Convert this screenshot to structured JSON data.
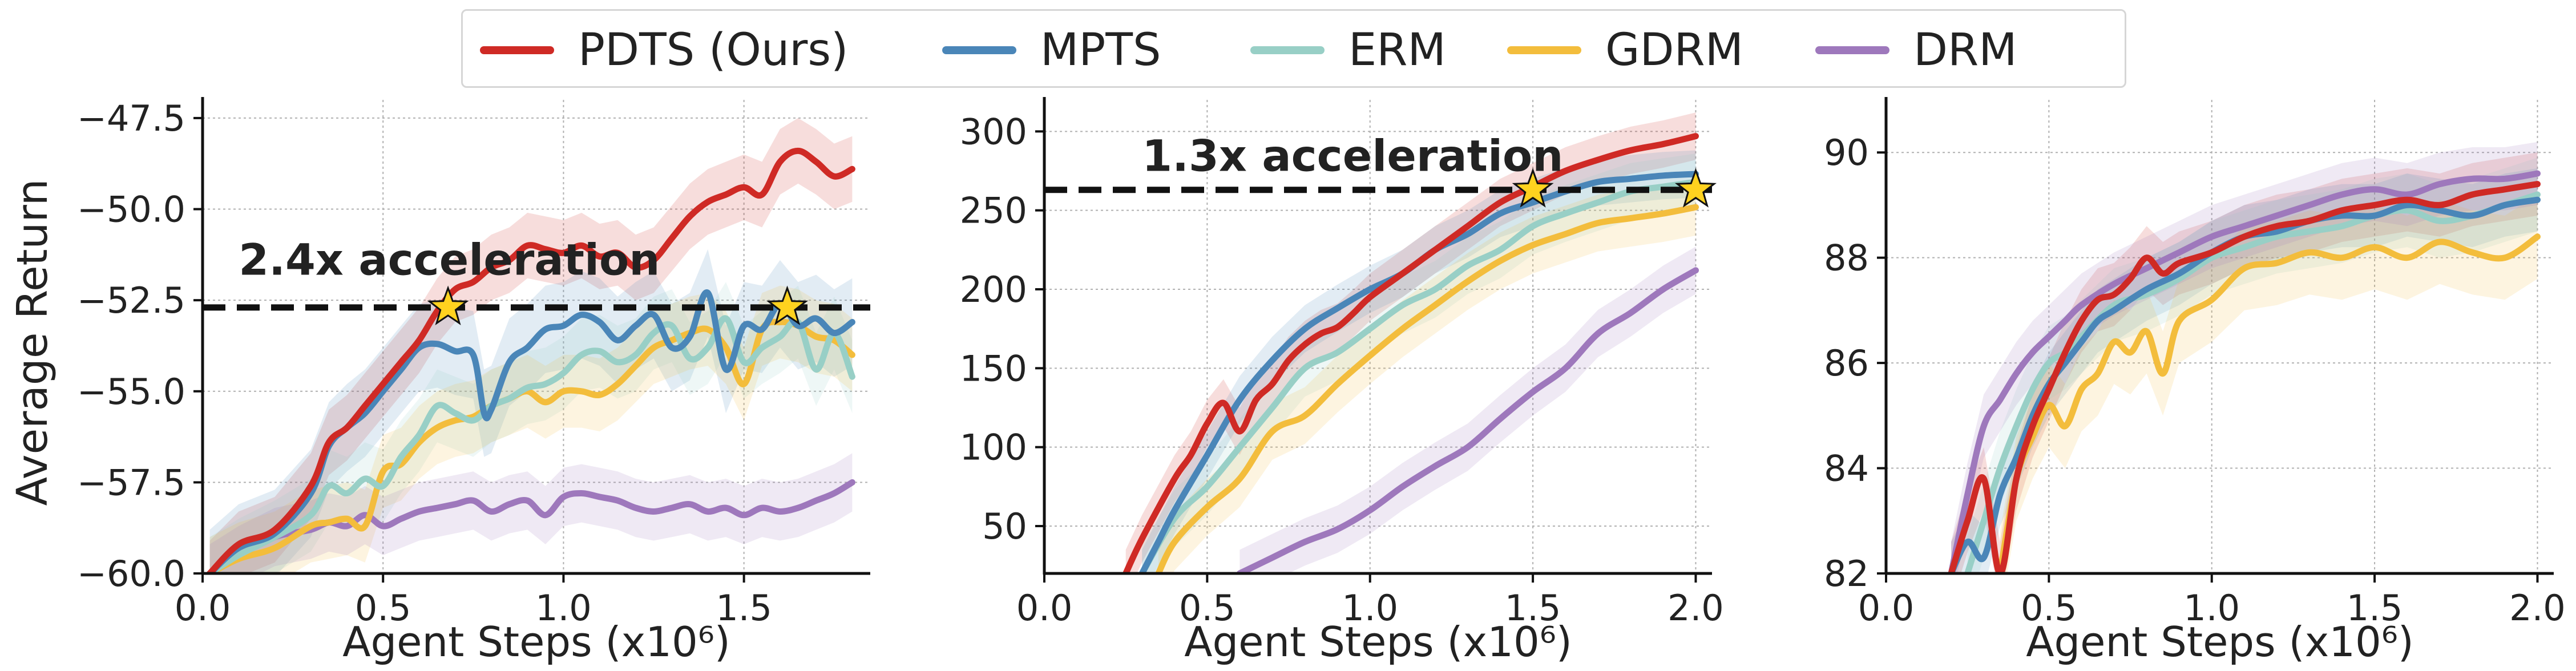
{
  "legend": [
    {
      "name": "PDTS (Ours)",
      "color": "#cf2a25"
    },
    {
      "name": "MPTS",
      "color": "#4a86b8"
    },
    {
      "name": "ERM",
      "color": "#98cfc6"
    },
    {
      "name": "GDRM",
      "color": "#f3bd3c"
    },
    {
      "name": "DRM",
      "color": "#9e78bc"
    }
  ],
  "chart_data": [
    {
      "type": "line",
      "xlabel": "Agent Steps (x10^6)",
      "ylabel": "Average Return",
      "xlim": [
        0,
        1.85
      ],
      "ylim": [
        -60,
        -47
      ],
      "xticks": [
        0.0,
        0.5,
        1.0,
        1.5
      ],
      "xtick_labels": [
        "0.0",
        "0.5",
        "1.0",
        "1.5"
      ],
      "yticks": [
        -60,
        -57.5,
        -55,
        -52.5,
        -50,
        -47.5
      ],
      "ytick_labels": [
        "−60.0",
        "−57.5",
        "−55.0",
        "−52.5",
        "−50.0",
        "−47.5"
      ],
      "grid": true,
      "annotation": {
        "text": "2.4x acceleration",
        "x": 0.1,
        "y": -51.8
      },
      "hline": -52.7,
      "stars": [
        [
          0.68,
          -52.7
        ],
        [
          1.62,
          -52.7
        ]
      ],
      "series": [
        {
          "name": "PDTS (Ours)",
          "color": "#cf2a25",
          "x": [
            0.02,
            0.1,
            0.2,
            0.3,
            0.35,
            0.4,
            0.45,
            0.5,
            0.55,
            0.6,
            0.65,
            0.7,
            0.75,
            0.8,
            0.85,
            0.9,
            0.95,
            1.0,
            1.05,
            1.1,
            1.15,
            1.2,
            1.25,
            1.3,
            1.35,
            1.4,
            1.45,
            1.5,
            1.55,
            1.6,
            1.65,
            1.7,
            1.75,
            1.8
          ],
          "y": [
            -60,
            -59.2,
            -58.8,
            -57.6,
            -56.4,
            -56,
            -55.4,
            -54.8,
            -54.2,
            -53.6,
            -52.8,
            -52.2,
            -52,
            -51.6,
            -51.4,
            -51,
            -51.1,
            -51.2,
            -51,
            -51.3,
            -51.2,
            -51.6,
            -51.4,
            -50.8,
            -50.2,
            -49.8,
            -49.6,
            -49.4,
            -49.6,
            -48.7,
            -48.4,
            -48.7,
            -49.1,
            -48.9
          ],
          "band": 0.9
        },
        {
          "name": "MPTS",
          "color": "#4a86b8",
          "x": [
            0.02,
            0.1,
            0.2,
            0.3,
            0.35,
            0.4,
            0.45,
            0.5,
            0.55,
            0.6,
            0.65,
            0.7,
            0.75,
            0.78,
            0.8,
            0.85,
            0.9,
            0.95,
            1.0,
            1.05,
            1.1,
            1.15,
            1.2,
            1.25,
            1.3,
            1.35,
            1.4,
            1.45,
            1.5,
            1.55,
            1.6,
            1.65,
            1.7,
            1.75,
            1.8
          ],
          "y": [
            -60,
            -59.3,
            -58.9,
            -57.8,
            -56.5,
            -56,
            -55.6,
            -55,
            -54.4,
            -53.8,
            -53.7,
            -53.9,
            -54,
            -55.6,
            -55.5,
            -54.2,
            -53.8,
            -53.3,
            -53.2,
            -52.9,
            -53.1,
            -53.6,
            -53.2,
            -52.9,
            -53.8,
            -53.5,
            -52.3,
            -54.4,
            -53.2,
            -53.3,
            -52.6,
            -53.2,
            -53,
            -53.4,
            -53.1
          ],
          "band": 1.2
        },
        {
          "name": "ERM",
          "color": "#98cfc6",
          "x": [
            0.02,
            0.1,
            0.2,
            0.3,
            0.35,
            0.4,
            0.45,
            0.5,
            0.55,
            0.6,
            0.65,
            0.7,
            0.75,
            0.8,
            0.85,
            0.9,
            0.95,
            1.0,
            1.05,
            1.1,
            1.15,
            1.2,
            1.25,
            1.3,
            1.35,
            1.4,
            1.45,
            1.5,
            1.55,
            1.6,
            1.65,
            1.7,
            1.75,
            1.8
          ],
          "y": [
            -60,
            -59.5,
            -59,
            -58.4,
            -57.6,
            -57.8,
            -57.4,
            -57.6,
            -56.8,
            -56.2,
            -55.4,
            -55.6,
            -55.8,
            -55.4,
            -55.2,
            -54.9,
            -54.8,
            -54.5,
            -54,
            -53.9,
            -54.2,
            -54,
            -53.4,
            -53.2,
            -54.1,
            -53.8,
            -53,
            -54.2,
            -53.8,
            -53.5,
            -53.1,
            -54.4,
            -53.4,
            -54.6
          ],
          "band": 1.0
        },
        {
          "name": "GDRM",
          "color": "#f3bd3c",
          "x": [
            0.02,
            0.1,
            0.2,
            0.3,
            0.35,
            0.4,
            0.45,
            0.5,
            0.55,
            0.6,
            0.65,
            0.7,
            0.75,
            0.8,
            0.85,
            0.9,
            0.95,
            1.0,
            1.05,
            1.1,
            1.15,
            1.2,
            1.25,
            1.3,
            1.35,
            1.4,
            1.45,
            1.5,
            1.55,
            1.6,
            1.65,
            1.7,
            1.75,
            1.8
          ],
          "y": [
            -60,
            -59.6,
            -59.3,
            -58.7,
            -58.6,
            -58.5,
            -58.7,
            -57.2,
            -57,
            -56.4,
            -56,
            -55.8,
            -55.7,
            -55.4,
            -55.2,
            -55,
            -55.3,
            -55,
            -55,
            -55.1,
            -54.8,
            -54.3,
            -53.8,
            -53.6,
            -53.4,
            -53.3,
            -53.8,
            -54.8,
            -53.3,
            -53.1,
            -53.2,
            -53.5,
            -53.6,
            -54
          ],
          "band": 1.0
        },
        {
          "name": "DRM",
          "color": "#9e78bc",
          "x": [
            0.02,
            0.1,
            0.2,
            0.3,
            0.35,
            0.4,
            0.45,
            0.5,
            0.55,
            0.6,
            0.65,
            0.7,
            0.75,
            0.8,
            0.85,
            0.9,
            0.95,
            1.0,
            1.05,
            1.1,
            1.15,
            1.2,
            1.25,
            1.3,
            1.35,
            1.4,
            1.45,
            1.5,
            1.55,
            1.6,
            1.65,
            1.7,
            1.75,
            1.8
          ],
          "y": [
            -60,
            -59.5,
            -59,
            -58.8,
            -58.6,
            -58.7,
            -58.4,
            -58.7,
            -58.5,
            -58.3,
            -58.2,
            -58.1,
            -58,
            -58.3,
            -58.1,
            -58,
            -58.4,
            -57.9,
            -57.8,
            -57.9,
            -58,
            -58.2,
            -58.3,
            -58.2,
            -58.1,
            -58.3,
            -58.2,
            -58.4,
            -58.2,
            -58.3,
            -58.2,
            -58,
            -57.8,
            -57.5
          ],
          "band": 0.8
        }
      ]
    },
    {
      "type": "line",
      "xlabel": "Agent Steps (x10^6)",
      "ylabel": "",
      "xlim": [
        0,
        2.05
      ],
      "ylim": [
        20,
        320
      ],
      "xticks": [
        0.0,
        0.5,
        1.0,
        1.5,
        2.0
      ],
      "xtick_labels": [
        "0.0",
        "0.5",
        "1.0",
        "1.5",
        "2.0"
      ],
      "yticks": [
        50,
        100,
        150,
        200,
        250,
        300
      ],
      "ytick_labels": [
        "50",
        "100",
        "150",
        "200",
        "250",
        "300"
      ],
      "grid": true,
      "annotation": {
        "text": "1.3x acceleration",
        "x": 0.3,
        "y": 275
      },
      "hline": 263,
      "stars": [
        [
          1.5,
          263
        ],
        [
          2.0,
          263
        ]
      ],
      "series": [
        {
          "name": "PDTS (Ours)",
          "color": "#cf2a25",
          "x": [
            0.25,
            0.3,
            0.4,
            0.45,
            0.5,
            0.55,
            0.6,
            0.65,
            0.7,
            0.75,
            0.8,
            0.85,
            0.9,
            0.95,
            1.0,
            1.1,
            1.2,
            1.3,
            1.4,
            1.5,
            1.6,
            1.7,
            1.8,
            1.9,
            2.0
          ],
          "y": [
            20,
            42,
            80,
            95,
            115,
            128,
            110,
            130,
            140,
            155,
            165,
            172,
            176,
            185,
            195,
            210,
            225,
            240,
            255,
            265,
            275,
            282,
            288,
            292,
            297
          ],
          "band": 15
        },
        {
          "name": "MPTS",
          "color": "#4a86b8",
          "x": [
            0.3,
            0.35,
            0.4,
            0.5,
            0.6,
            0.7,
            0.8,
            0.9,
            1.0,
            1.1,
            1.2,
            1.3,
            1.4,
            1.5,
            1.6,
            1.7,
            1.8,
            1.9,
            2.0
          ],
          "y": [
            20,
            40,
            60,
            95,
            130,
            155,
            175,
            188,
            200,
            210,
            225,
            235,
            248,
            255,
            262,
            268,
            270,
            272,
            273
          ],
          "band": 15
        },
        {
          "name": "ERM",
          "color": "#98cfc6",
          "x": [
            0.3,
            0.4,
            0.5,
            0.6,
            0.7,
            0.8,
            0.9,
            1.0,
            1.1,
            1.2,
            1.3,
            1.4,
            1.5,
            1.6,
            1.7,
            1.8,
            1.9,
            2.0
          ],
          "y": [
            20,
            55,
            75,
            100,
            125,
            150,
            160,
            175,
            190,
            200,
            215,
            225,
            240,
            248,
            255,
            262,
            265,
            268
          ],
          "band": 18
        },
        {
          "name": "GDRM",
          "color": "#f3bd3c",
          "x": [
            0.35,
            0.4,
            0.5,
            0.6,
            0.7,
            0.8,
            0.9,
            1.0,
            1.1,
            1.2,
            1.3,
            1.4,
            1.5,
            1.6,
            1.7,
            1.8,
            1.9,
            2.0
          ],
          "y": [
            20,
            40,
            62,
            80,
            110,
            120,
            140,
            158,
            175,
            190,
            205,
            218,
            228,
            235,
            242,
            245,
            248,
            252
          ],
          "band": 18
        },
        {
          "name": "DRM",
          "color": "#9e78bc",
          "x": [
            0.6,
            0.7,
            0.8,
            0.9,
            1.0,
            1.1,
            1.2,
            1.3,
            1.4,
            1.5,
            1.6,
            1.7,
            1.8,
            1.9,
            2.0
          ],
          "y": [
            20,
            30,
            40,
            48,
            60,
            75,
            88,
            100,
            118,
            135,
            150,
            172,
            185,
            200,
            212
          ],
          "band": 15
        }
      ]
    },
    {
      "type": "line",
      "xlabel": "Agent Steps (x10^6)",
      "ylabel": "",
      "xlim": [
        0,
        2.05
      ],
      "ylim": [
        82,
        91
      ],
      "xticks": [
        0.0,
        0.5,
        1.0,
        1.5,
        2.0
      ],
      "xtick_labels": [
        "0.0",
        "0.5",
        "1.0",
        "1.5",
        "2.0"
      ],
      "yticks": [
        82,
        84,
        86,
        88,
        90
      ],
      "ytick_labels": [
        "82",
        "84",
        "86",
        "88",
        "90"
      ],
      "grid": true,
      "series": [
        {
          "name": "PDTS (Ours)",
          "color": "#cf2a25",
          "x": [
            0.2,
            0.25,
            0.3,
            0.35,
            0.4,
            0.45,
            0.5,
            0.55,
            0.6,
            0.65,
            0.7,
            0.75,
            0.8,
            0.85,
            0.9,
            1.0,
            1.1,
            1.2,
            1.3,
            1.4,
            1.5,
            1.6,
            1.7,
            1.8,
            1.9,
            2.0
          ],
          "y": [
            82,
            83,
            83.8,
            82,
            83.8,
            84.8,
            85.5,
            86.2,
            86.8,
            87.2,
            87.3,
            87.6,
            88,
            87.7,
            87.9,
            88.1,
            88.4,
            88.6,
            88.7,
            88.9,
            89,
            89.1,
            89,
            89.2,
            89.3,
            89.4
          ],
          "band": 0.6
        },
        {
          "name": "MPTS",
          "color": "#4a86b8",
          "x": [
            0.2,
            0.25,
            0.3,
            0.35,
            0.4,
            0.45,
            0.5,
            0.55,
            0.6,
            0.65,
            0.7,
            0.8,
            0.9,
            1.0,
            1.1,
            1.2,
            1.3,
            1.4,
            1.5,
            1.6,
            1.7,
            1.8,
            1.9,
            2.0
          ],
          "y": [
            82,
            82.6,
            82.3,
            83.5,
            84.2,
            85,
            85.6,
            86,
            86.4,
            86.8,
            87,
            87.4,
            87.7,
            88.1,
            88.4,
            88.5,
            88.7,
            88.8,
            88.8,
            89,
            88.9,
            88.8,
            89,
            89.1
          ],
          "band": 0.6
        },
        {
          "name": "ERM",
          "color": "#98cfc6",
          "x": [
            0.25,
            0.3,
            0.35,
            0.4,
            0.45,
            0.5,
            0.55,
            0.6,
            0.7,
            0.8,
            0.9,
            1.0,
            1.1,
            1.2,
            1.3,
            1.4,
            1.5,
            1.6,
            1.7,
            1.8,
            1.9,
            2.0
          ],
          "y": [
            82,
            83,
            84,
            84.8,
            85.5,
            86,
            86.2,
            86.5,
            87.1,
            87.3,
            87.6,
            88,
            88.2,
            88.4,
            88.5,
            88.6,
            88.8,
            88.9,
            88.7,
            88.8,
            89,
            89.2
          ],
          "band": 0.7
        },
        {
          "name": "GDRM",
          "color": "#f3bd3c",
          "x": [
            0.35,
            0.4,
            0.45,
            0.5,
            0.55,
            0.6,
            0.65,
            0.7,
            0.75,
            0.8,
            0.85,
            0.9,
            1.0,
            1.1,
            1.2,
            1.3,
            1.4,
            1.5,
            1.6,
            1.7,
            1.8,
            1.9,
            2.0
          ],
          "y": [
            82,
            83.8,
            84.6,
            85.2,
            84.8,
            85.5,
            85.8,
            86.4,
            86.2,
            86.6,
            85.8,
            86.8,
            87.2,
            87.8,
            87.9,
            88.1,
            88,
            88.2,
            88,
            88.3,
            88.1,
            88,
            88.4
          ],
          "band": 0.8
        },
        {
          "name": "DRM",
          "color": "#9e78bc",
          "x": [
            0.2,
            0.25,
            0.3,
            0.35,
            0.4,
            0.45,
            0.5,
            0.55,
            0.6,
            0.7,
            0.8,
            0.9,
            1.0,
            1.1,
            1.2,
            1.3,
            1.4,
            1.5,
            1.6,
            1.7,
            1.8,
            1.9,
            2.0
          ],
          "y": [
            82,
            83.5,
            84.8,
            85.3,
            85.8,
            86.2,
            86.5,
            86.8,
            87.1,
            87.5,
            87.8,
            88.1,
            88.4,
            88.6,
            88.8,
            89,
            89.2,
            89.3,
            89.2,
            89.4,
            89.5,
            89.5,
            89.6
          ],
          "band": 0.6
        }
      ]
    }
  ]
}
